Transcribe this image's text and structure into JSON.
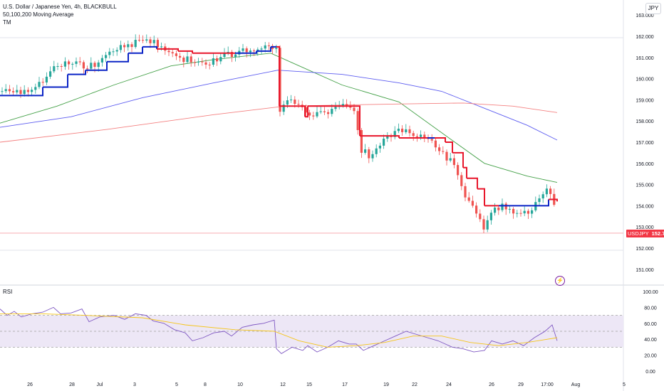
{
  "legend": {
    "title": "U.S. Dollar / Japanese Yen, 4h, BLACKBULL",
    "indicator": "50,100,200 Moving Average",
    "tm": "TM"
  },
  "currency": "JPY",
  "rsi_label": "RSI",
  "alert_icon": "lightning-icon",
  "last_price": {
    "symbol": "USDJPY",
    "value": "152.706"
  },
  "colors": {
    "up": "#26a69a",
    "down": "#ef5350",
    "tm_up": "#0b24c6",
    "tm_down": "#e8162b",
    "ma50": "#43a047",
    "ma100": "#5c5cf0",
    "ma200": "#f48080",
    "rsi": "#7e57c2",
    "rsi_ma": "#f5c518",
    "rsi_band": "#ede7f6"
  },
  "chart_data": [
    {
      "type": "candlestick",
      "title": "U.S. Dollar / Japanese Yen, 4h, BLACKBULL",
      "ylim": [
        150.5,
        163.2
      ],
      "y_ticks": [
        "163.000",
        "162.000",
        "161.000",
        "160.000",
        "159.000",
        "158.000",
        "157.000",
        "156.000",
        "155.000",
        "154.000",
        "153.000",
        "152.000",
        "151.000"
      ],
      "x_ticks": [
        "26",
        "28",
        "Jul",
        "3",
        "5",
        "8",
        "10",
        "12",
        "15",
        "17",
        "19",
        "22",
        "24",
        "26",
        "29",
        "17:00",
        "Aug",
        "5"
      ],
      "series": [
        {
          "name": "50",
          "points": [
            [
              0,
              157.9
            ],
            [
              80,
              158.7
            ],
            [
              160,
              159.7
            ],
            [
              240,
              160.6
            ],
            [
              300,
              160.9
            ],
            [
              380,
              161.2
            ],
            [
              420,
              160.6
            ],
            [
              480,
              159.7
            ],
            [
              560,
              158.9
            ],
            [
              630,
              157.2
            ],
            [
              680,
              156.0
            ],
            [
              740,
              155.4
            ],
            [
              782,
              155.1
            ]
          ]
        },
        {
          "name": "100",
          "points": [
            [
              0,
              157.7
            ],
            [
              100,
              158.2
            ],
            [
              200,
              159.1
            ],
            [
              300,
              159.8
            ],
            [
              390,
              160.4
            ],
            [
              480,
              160.2
            ],
            [
              560,
              159.8
            ],
            [
              620,
              159.4
            ],
            [
              680,
              158.6
            ],
            [
              740,
              157.8
            ],
            [
              782,
              157.1
            ]
          ]
        },
        {
          "name": "200",
          "points": [
            [
              0,
              157.0
            ],
            [
              150,
              157.6
            ],
            [
              300,
              158.3
            ],
            [
              400,
              158.7
            ],
            [
              550,
              158.8
            ],
            [
              650,
              158.85
            ],
            [
              720,
              158.7
            ],
            [
              782,
              158.4
            ]
          ]
        }
      ],
      "tm_line": [
        [
          0,
          159.2,
          "up"
        ],
        [
          30,
          159.2,
          "up"
        ],
        [
          60,
          159.6,
          "up"
        ],
        [
          95,
          160.2,
          "up"
        ],
        [
          120,
          160.4,
          "up"
        ],
        [
          150,
          160.8,
          "up"
        ],
        [
          180,
          161.2,
          "up"
        ],
        [
          200,
          161.5,
          "up"
        ],
        [
          220,
          161.4,
          "down"
        ],
        [
          250,
          161.3,
          "down"
        ],
        [
          270,
          161.2,
          "down"
        ],
        [
          330,
          161.2,
          "down"
        ],
        [
          330,
          161.2,
          "up"
        ],
        [
          360,
          161.3,
          "up"
        ],
        [
          380,
          161.5,
          "up"
        ],
        [
          388,
          161.5,
          "down"
        ],
        [
          392,
          158.7,
          "down"
        ],
        [
          425,
          158.7,
          "down"
        ],
        [
          428,
          158.2,
          "down"
        ],
        [
          432,
          158.7,
          "down"
        ],
        [
          480,
          158.7,
          "down"
        ],
        [
          500,
          158.7,
          "down"
        ],
        [
          505,
          157.3,
          "down"
        ],
        [
          560,
          157.2,
          "down"
        ],
        [
          600,
          157.2,
          "up"
        ],
        [
          610,
          157.2,
          "down"
        ],
        [
          625,
          157.0,
          "down"
        ],
        [
          635,
          156.5,
          "down"
        ],
        [
          650,
          155.8,
          "down"
        ],
        [
          655,
          155.3,
          "down"
        ],
        [
          670,
          154.8,
          "down"
        ],
        [
          680,
          154.0,
          "down"
        ],
        [
          700,
          154.0,
          "up"
        ],
        [
          760,
          154.0,
          "up"
        ],
        [
          770,
          154.3,
          "down"
        ],
        [
          782,
          154.2,
          "down"
        ]
      ],
      "last": 152.706
    },
    {
      "type": "line",
      "title": "RSI",
      "ylim": [
        0,
        100
      ],
      "y_ticks": [
        "100.00",
        "80.00",
        "60.00",
        "40.00",
        "20.00",
        "0.00"
      ],
      "bands": [
        30,
        50,
        70
      ],
      "series": [
        {
          "name": "RSI",
          "points": [
            [
              0,
              78
            ],
            [
              10,
              70
            ],
            [
              20,
              75
            ],
            [
              30,
              68
            ],
            [
              45,
              72
            ],
            [
              60,
              74
            ],
            [
              75,
              80
            ],
            [
              85,
              72
            ],
            [
              100,
              73
            ],
            [
              115,
              78
            ],
            [
              125,
              62
            ],
            [
              140,
              68
            ],
            [
              160,
              70
            ],
            [
              175,
              65
            ],
            [
              190,
              72
            ],
            [
              205,
              70
            ],
            [
              215,
              63
            ],
            [
              230,
              60
            ],
            [
              245,
              52
            ],
            [
              260,
              48
            ],
            [
              270,
              38
            ],
            [
              285,
              42
            ],
            [
              300,
              48
            ],
            [
              315,
              50
            ],
            [
              325,
              44
            ],
            [
              340,
              55
            ],
            [
              355,
              58
            ],
            [
              370,
              60
            ],
            [
              385,
              64
            ],
            [
              388,
              28
            ],
            [
              395,
              22
            ],
            [
              410,
              30
            ],
            [
              425,
              26
            ],
            [
              432,
              32
            ],
            [
              445,
              24
            ],
            [
              460,
              30
            ],
            [
              475,
              38
            ],
            [
              490,
              34
            ],
            [
              500,
              34
            ],
            [
              510,
              26
            ],
            [
              525,
              32
            ],
            [
              540,
              38
            ],
            [
              555,
              44
            ],
            [
              570,
              50
            ],
            [
              585,
              46
            ],
            [
              600,
              42
            ],
            [
              615,
              38
            ],
            [
              625,
              34
            ],
            [
              635,
              30
            ],
            [
              650,
              28
            ],
            [
              665,
              24
            ],
            [
              680,
              26
            ],
            [
              690,
              38
            ],
            [
              705,
              34
            ],
            [
              720,
              38
            ],
            [
              735,
              32
            ],
            [
              750,
              42
            ],
            [
              765,
              50
            ],
            [
              775,
              58
            ],
            [
              782,
              38
            ]
          ]
        },
        {
          "name": "MA",
          "points": [
            [
              0,
              72
            ],
            [
              60,
              72
            ],
            [
              120,
              70
            ],
            [
              200,
              67
            ],
            [
              260,
              58
            ],
            [
              330,
              52
            ],
            [
              385,
              50
            ],
            [
              420,
              38
            ],
            [
              460,
              30
            ],
            [
              500,
              32
            ],
            [
              540,
              36
            ],
            [
              580,
              44
            ],
            [
              620,
              44
            ],
            [
              660,
              36
            ],
            [
              700,
              32
            ],
            [
              740,
              36
            ],
            [
              782,
              42
            ]
          ]
        }
      ]
    }
  ]
}
